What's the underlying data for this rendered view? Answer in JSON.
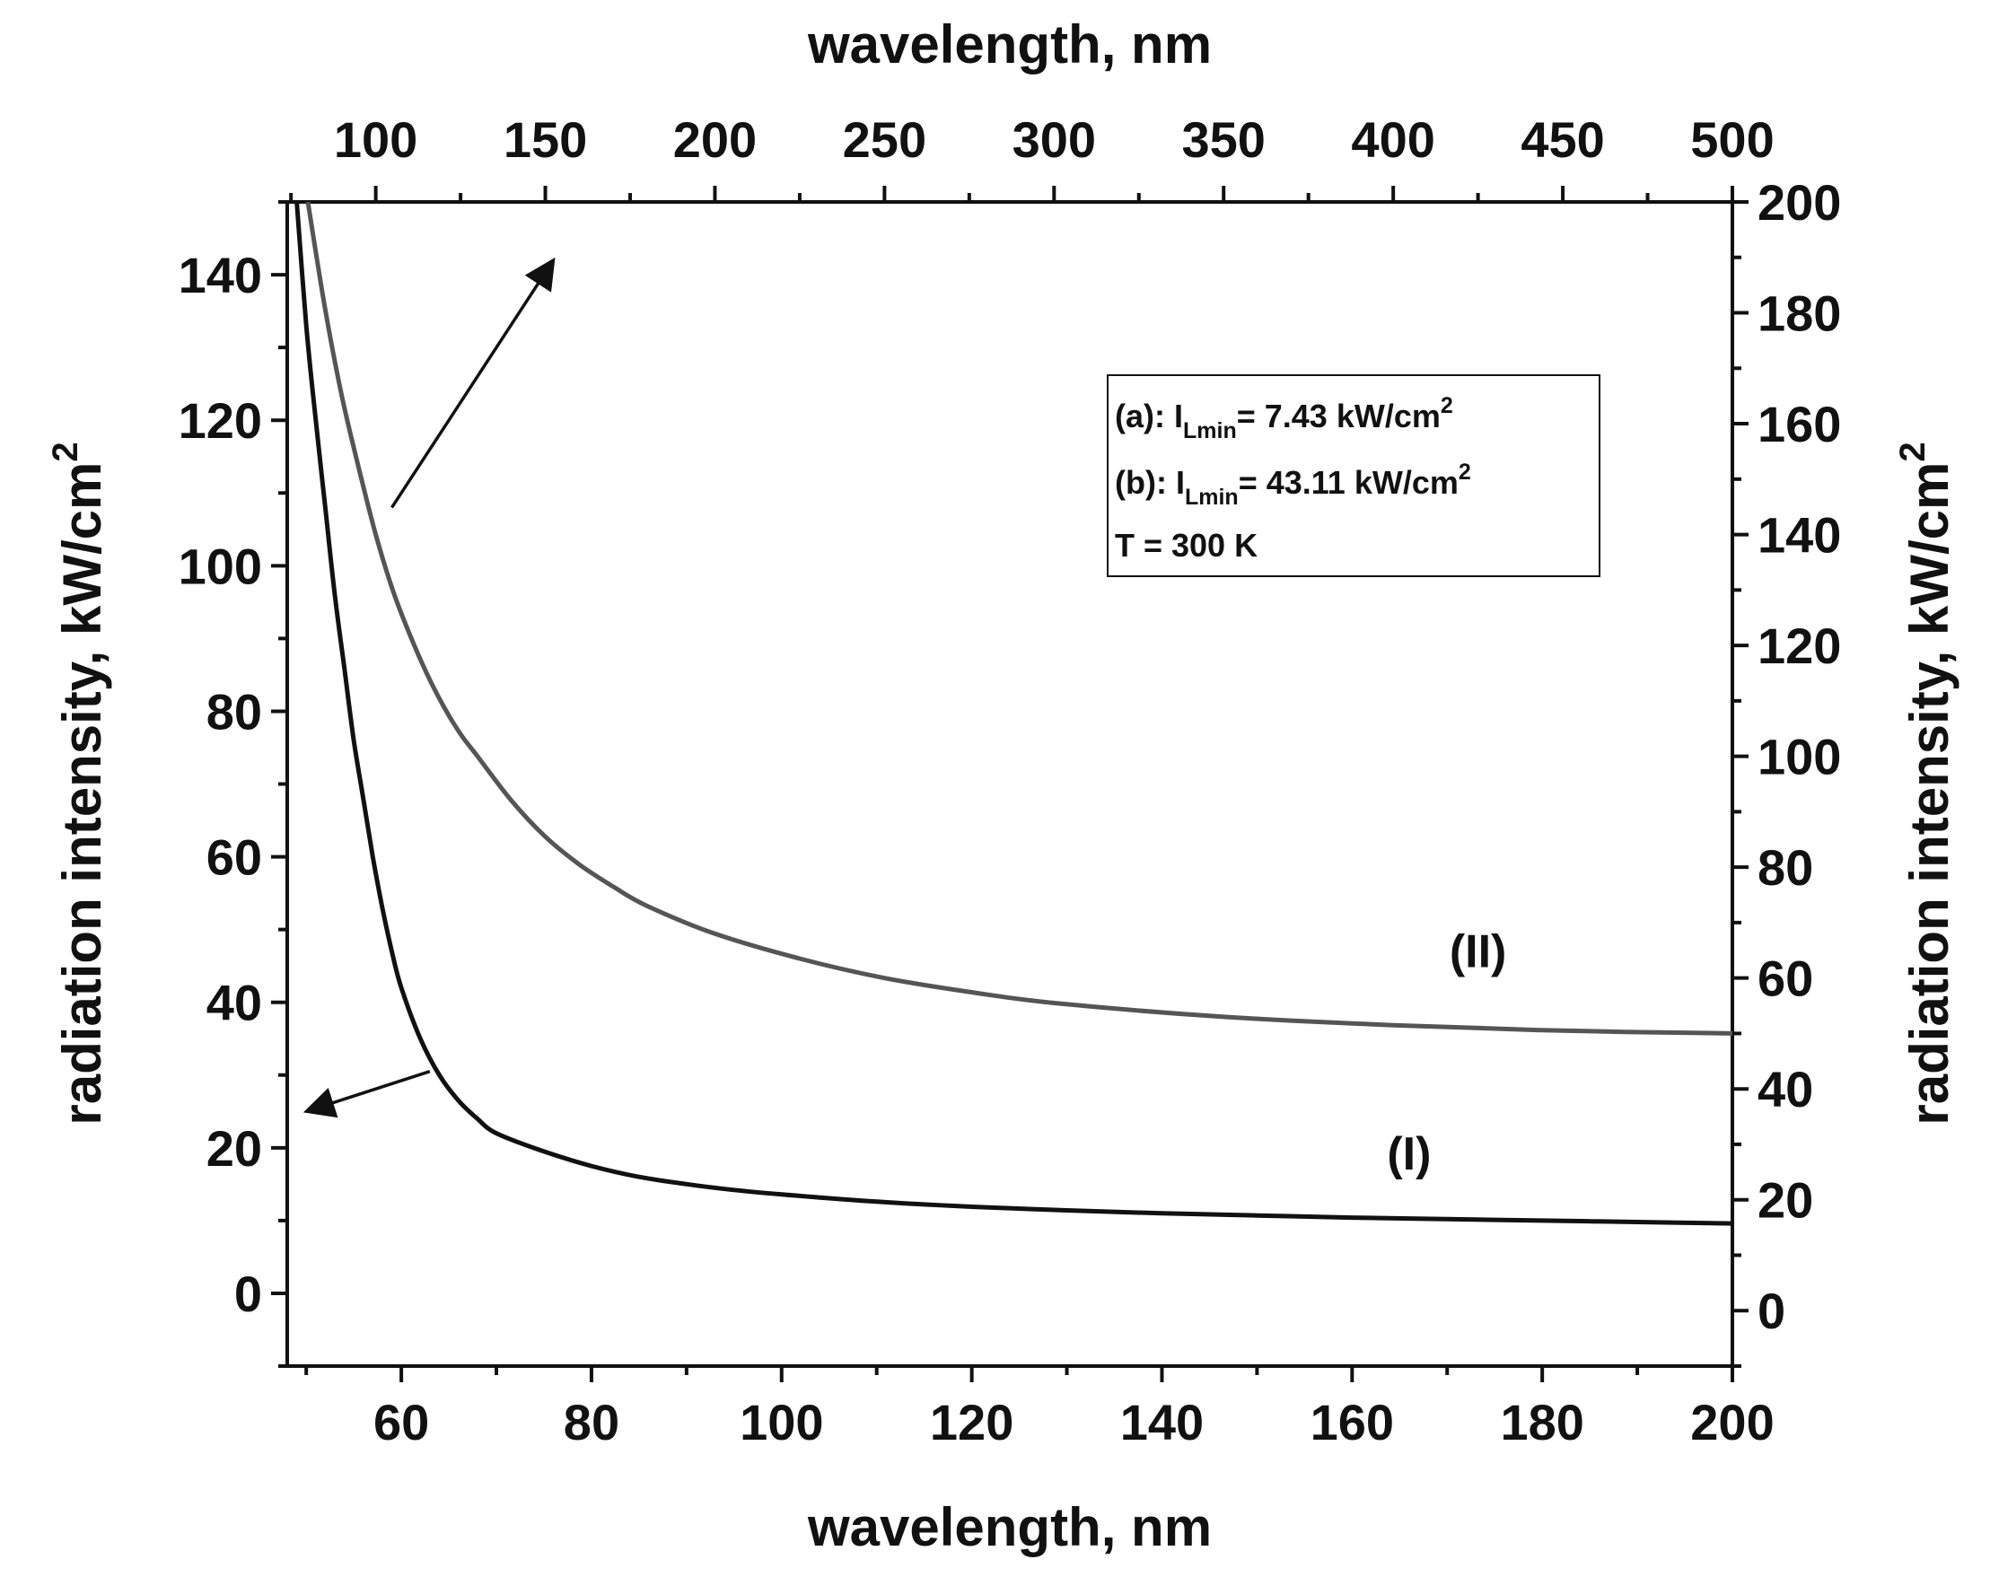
{
  "chart_data": {
    "type": "line",
    "title": "",
    "xlabel_bottom": "wavelength, nm",
    "xlabel_top": "wavelength, nm",
    "ylabel_left": "radiation intensity, kW/cm",
    "ylabel_right": "radiation intensity, kW/cm",
    "ylabel_superscript": "2",
    "x_bottom": {
      "range": [
        48,
        200
      ],
      "ticks": [
        60,
        80,
        100,
        120,
        140,
        160,
        180,
        200
      ],
      "minor_step": 10
    },
    "x_top": {
      "range": [
        73.9,
        500
      ],
      "ticks": [
        100,
        150,
        200,
        250,
        300,
        350,
        400,
        450,
        500
      ],
      "minor_step": 25
    },
    "y_left": {
      "range": [
        -10,
        150
      ],
      "ticks": [
        0,
        20,
        40,
        60,
        80,
        100,
        120,
        140
      ],
      "minor_step": 10
    },
    "y_right": {
      "range": [
        -10,
        200
      ],
      "ticks": [
        0,
        20,
        40,
        60,
        80,
        100,
        120,
        140,
        160,
        180,
        200
      ],
      "minor_step": 10
    },
    "series": [
      {
        "name": "(I)",
        "axes": "bottom-left",
        "color": "#111111",
        "x": [
          49,
          50,
          51,
          52,
          53,
          54,
          55,
          56,
          57,
          58,
          59,
          60,
          62,
          64,
          66,
          68,
          70,
          75,
          80,
          85,
          90,
          95,
          100,
          110,
          120,
          130,
          140,
          150,
          160,
          170,
          180,
          190,
          200
        ],
        "y": [
          150,
          133,
          120,
          108,
          96,
          86,
          76,
          68,
          60,
          53,
          47,
          42,
          35,
          30,
          26.5,
          24,
          22,
          19.5,
          17.5,
          16,
          15,
          14.2,
          13.6,
          12.6,
          11.9,
          11.4,
          11,
          10.7,
          10.4,
          10.2,
          10,
          9.8,
          9.6
        ]
      },
      {
        "name": "(II)",
        "axes": "top-right",
        "color": "#555555",
        "x": [
          80,
          85,
          90,
          95,
          100,
          105,
          110,
          115,
          120,
          125,
          130,
          140,
          150,
          160,
          170,
          180,
          200,
          225,
          250,
          275,
          300,
          350,
          400,
          450,
          500
        ],
        "y": [
          200,
          181,
          165,
          152,
          140,
          130,
          122,
          115,
          109,
          104,
          100,
          92,
          85.5,
          80.5,
          76.5,
          73,
          68,
          63.5,
          60,
          57.5,
          55.5,
          53,
          51.5,
          50.5,
          50
        ]
      }
    ],
    "annotations": [
      {
        "text": "(I)",
        "x": 166,
        "y": 17,
        "axes": "bottom-left"
      },
      {
        "text": "(II)",
        "x": 425,
        "y": 62,
        "axes": "top-right"
      }
    ],
    "arrows": [
      {
        "name": "arrow-I-to-left-axis",
        "from": [
          63,
          30.5
        ],
        "to": [
          50,
          25
        ],
        "axes": "bottom-left"
      },
      {
        "name": "arrow-II-to-top-axis",
        "from": [
          59,
          108
        ],
        "to": [
          76,
          142
        ],
        "axes": "bottom-left"
      }
    ],
    "legend": {
      "placement": "top-right",
      "lines": [
        {
          "prefix": "(a): I",
          "subscript": "Lmin",
          "suffix": "= 7.43 kW/cm",
          "superscript": "2"
        },
        {
          "prefix": "(b): I",
          "subscript": "Lmin",
          "suffix": "= 43.11 kW/cm",
          "superscript": "2"
        },
        {
          "prefix": "T = 300 K",
          "subscript": "",
          "suffix": "",
          "superscript": ""
        }
      ]
    }
  }
}
